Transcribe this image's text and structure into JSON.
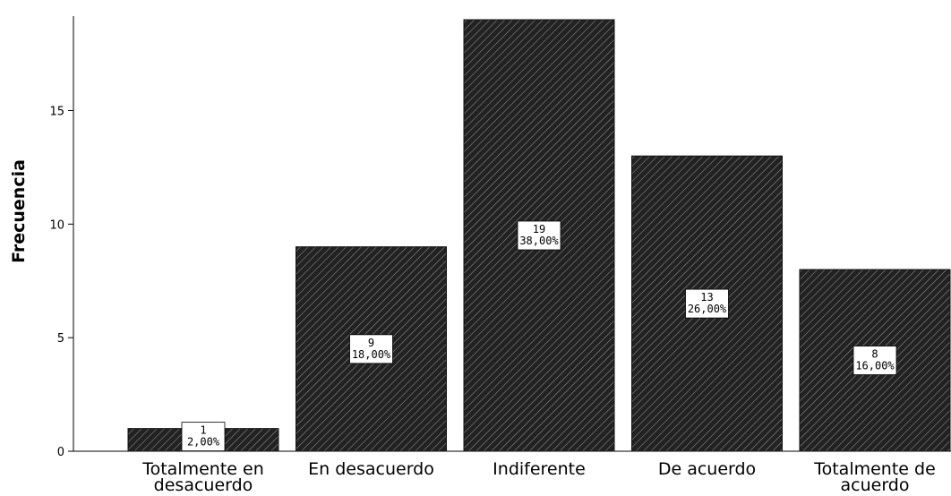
{
  "chart_data": {
    "type": "bar",
    "title": "",
    "xlabel": "",
    "ylabel": "Frecuencia",
    "ylim": [
      0,
      19
    ],
    "yticks": [
      0,
      5,
      10,
      15
    ],
    "grid": false,
    "legend": "none",
    "bar_fill": "#222222",
    "bar_pattern": "diagonal-hatch",
    "categories": [
      [
        "Totalmente en",
        "desacuerdo"
      ],
      [
        "En desacuerdo"
      ],
      [
        "Indiferente"
      ],
      [
        "De acuerdo"
      ],
      [
        "Totalmente de",
        "acuerdo"
      ]
    ],
    "values": [
      1,
      9,
      19,
      13,
      8
    ],
    "percent_labels": [
      "2,00%",
      "18,00%",
      "38,00%",
      "26,00%",
      "16,00%"
    ]
  }
}
